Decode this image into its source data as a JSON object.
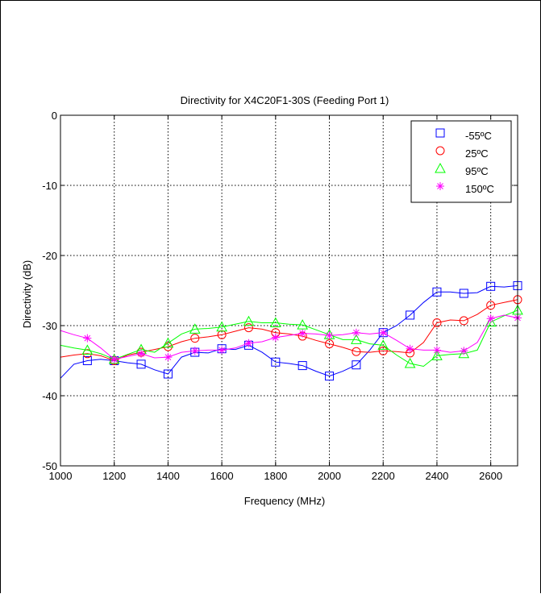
{
  "chart_data": {
    "type": "line",
    "title": "Directivity for X4C20F1-30S (Feeding Port 1)",
    "xlabel": "Frequency (MHz)",
    "ylabel": "Directivity (dB)",
    "xlim": [
      1000,
      2700
    ],
    "ylim": [
      -50,
      0
    ],
    "xticks": [
      1000,
      1200,
      1400,
      1600,
      1800,
      2000,
      2200,
      2400,
      2600
    ],
    "yticks": [
      0,
      -10,
      -20,
      -30,
      -40,
      -50
    ],
    "grid": true,
    "legend_position": "top-right",
    "series": [
      {
        "name": "-55ºC",
        "color": "#0000ff",
        "marker": "square",
        "x": [
          1000,
          1050,
          1100,
          1150,
          1200,
          1250,
          1300,
          1350,
          1400,
          1450,
          1500,
          1550,
          1600,
          1650,
          1700,
          1750,
          1800,
          1850,
          1900,
          1950,
          2000,
          2050,
          2100,
          2150,
          2200,
          2250,
          2300,
          2350,
          2400,
          2450,
          2500,
          2550,
          2600,
          2650,
          2700
        ],
        "y": [
          -37.5,
          -35.5,
          -35.0,
          -34.8,
          -35.0,
          -35.3,
          -35.5,
          -36.3,
          -36.9,
          -34.5,
          -33.8,
          -33.9,
          -33.3,
          -33.4,
          -32.8,
          -33.8,
          -35.2,
          -35.4,
          -35.7,
          -36.5,
          -37.2,
          -36.5,
          -35.6,
          -33.5,
          -31.0,
          -30.0,
          -28.5,
          -26.7,
          -25.2,
          -25.2,
          -25.4,
          -25.3,
          -24.4,
          -24.5,
          -24.3
        ]
      },
      {
        "name": "25ºC",
        "color": "#ff0000",
        "marker": "circle",
        "x": [
          1000,
          1050,
          1100,
          1150,
          1200,
          1250,
          1300,
          1350,
          1400,
          1450,
          1500,
          1550,
          1600,
          1650,
          1700,
          1750,
          1800,
          1850,
          1900,
          1950,
          2000,
          2050,
          2100,
          2150,
          2200,
          2250,
          2300,
          2350,
          2400,
          2450,
          2500,
          2550,
          2600,
          2650,
          2700
        ],
        "y": [
          -34.5,
          -34.2,
          -34.0,
          -34.3,
          -35.0,
          -34.2,
          -33.8,
          -33.4,
          -33.0,
          -32.3,
          -31.8,
          -31.6,
          -31.3,
          -30.8,
          -30.3,
          -30.5,
          -31.0,
          -31.2,
          -31.5,
          -32.1,
          -32.6,
          -33.1,
          -33.7,
          -33.8,
          -33.6,
          -33.7,
          -33.9,
          -32.4,
          -29.6,
          -29.2,
          -29.3,
          -28.4,
          -27.1,
          -26.7,
          -26.3
        ]
      },
      {
        "name": "95ºC",
        "color": "#00ff00",
        "marker": "triangle",
        "x": [
          1000,
          1050,
          1100,
          1150,
          1200,
          1250,
          1300,
          1350,
          1400,
          1450,
          1500,
          1550,
          1600,
          1650,
          1700,
          1750,
          1800,
          1850,
          1900,
          1950,
          2000,
          2050,
          2100,
          2150,
          2200,
          2250,
          2300,
          2350,
          2400,
          2450,
          2500,
          2550,
          2600,
          2650,
          2700
        ],
        "y": [
          -32.8,
          -33.2,
          -33.5,
          -34.0,
          -34.8,
          -34.1,
          -33.4,
          -33.8,
          -32.5,
          -31.2,
          -30.5,
          -30.4,
          -30.2,
          -29.8,
          -29.4,
          -29.6,
          -29.6,
          -29.8,
          -29.9,
          -30.6,
          -31.3,
          -32.0,
          -32.0,
          -32.6,
          -32.8,
          -34.2,
          -35.4,
          -35.8,
          -34.3,
          -34.1,
          -34.0,
          -33.5,
          -29.5,
          -28.6,
          -27.8
        ]
      },
      {
        "name": "150ºC",
        "color": "#ff00ff",
        "marker": "asterisk",
        "x": [
          1000,
          1050,
          1100,
          1150,
          1200,
          1250,
          1300,
          1350,
          1400,
          1450,
          1500,
          1550,
          1600,
          1650,
          1700,
          1750,
          1800,
          1850,
          1900,
          1950,
          2000,
          2050,
          2100,
          2150,
          2200,
          2250,
          2300,
          2350,
          2400,
          2450,
          2500,
          2550,
          2600,
          2650,
          2700
        ],
        "y": [
          -30.7,
          -31.3,
          -31.8,
          -33.2,
          -34.8,
          -34.4,
          -34.0,
          -34.6,
          -34.5,
          -33.8,
          -33.6,
          -33.5,
          -33.5,
          -33.2,
          -32.5,
          -32.3,
          -31.7,
          -31.4,
          -31.1,
          -31.2,
          -31.4,
          -31.3,
          -31.0,
          -31.2,
          -31.0,
          -32.1,
          -33.3,
          -33.5,
          -33.5,
          -33.8,
          -33.6,
          -32.4,
          -29.0,
          -28.5,
          -28.9
        ]
      }
    ]
  }
}
